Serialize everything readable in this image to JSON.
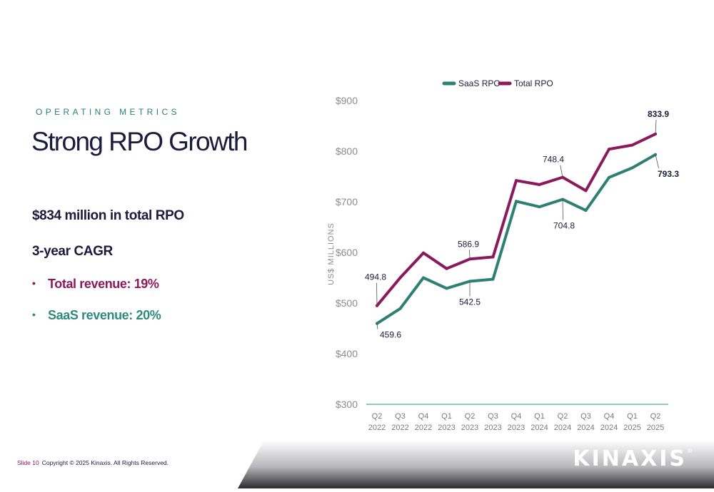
{
  "slide": {
    "section_label": "OPERATING METRICS",
    "title": "Strong RPO Growth",
    "points": [
      "$834 million in total RPO",
      "3-year CAGR"
    ],
    "bullets": [
      {
        "bullet": "•",
        "text": "Total revenue: 19%",
        "color": "#8a1a5c"
      },
      {
        "bullet": "•",
        "text": "SaaS revenue: 20%",
        "color": "#2e8a7d"
      }
    ]
  },
  "footer": {
    "slide_number": "Slide 10",
    "copyright": "Copyright © 2025 Kinaxis. All Rights Reserved.",
    "logo_text": "KINAXIS",
    "logo_mark": "®"
  },
  "chart_data": {
    "type": "line",
    "ylabel": "US$ MILLIONS",
    "ylim": [
      300,
      900
    ],
    "yticks": [
      300,
      400,
      500,
      600,
      700,
      800,
      900
    ],
    "ytick_labels": [
      "$300",
      "$400",
      "$500",
      "$600",
      "$700",
      "$800",
      "$900"
    ],
    "categories": [
      "Q2 2022",
      "Q3 2022",
      "Q4 2022",
      "Q1 2023",
      "Q2 2023",
      "Q3 2023",
      "Q4 2023",
      "Q1 2024",
      "Q2 2024",
      "Q3 2024",
      "Q4 2024",
      "Q1 2025",
      "Q2 2025"
    ],
    "category_lines": [
      [
        "Q2",
        "2022"
      ],
      [
        "Q3",
        "2022"
      ],
      [
        "Q4",
        "2022"
      ],
      [
        "Q1",
        "2023"
      ],
      [
        "Q2",
        "2023"
      ],
      [
        "Q3",
        "2023"
      ],
      [
        "Q4",
        "2023"
      ],
      [
        "Q1",
        "2024"
      ],
      [
        "Q2",
        "2024"
      ],
      [
        "Q3",
        "2024"
      ],
      [
        "Q4",
        "2024"
      ],
      [
        "Q1",
        "2025"
      ],
      [
        "Q2",
        "2025"
      ]
    ],
    "legend_position": "top",
    "grid": false,
    "series": [
      {
        "name": "SaaS RPO",
        "color": "#2e7f74",
        "values": [
          459.6,
          489,
          550,
          529,
          543,
          547,
          701,
          690,
          704.8,
          683,
          748,
          767,
          793.3
        ],
        "labels": [
          {
            "index": 0,
            "text": "459.6"
          },
          {
            "index": 4,
            "text": "542.5"
          },
          {
            "index": 8,
            "text": "704.8"
          },
          {
            "index": 12,
            "text": "793.3",
            "bold": true
          }
        ]
      },
      {
        "name": "Total RPO",
        "color": "#8a1a5c",
        "values": [
          494.8,
          550,
          599,
          568,
          586.9,
          591,
          742,
          734,
          748.4,
          722,
          804,
          812,
          833.9
        ],
        "labels": [
          {
            "index": 0,
            "text": "494.8"
          },
          {
            "index": 4,
            "text": "586.9"
          },
          {
            "index": 8,
            "text": "748.4"
          },
          {
            "index": 12,
            "text": "833.9",
            "bold": true
          }
        ]
      }
    ]
  }
}
